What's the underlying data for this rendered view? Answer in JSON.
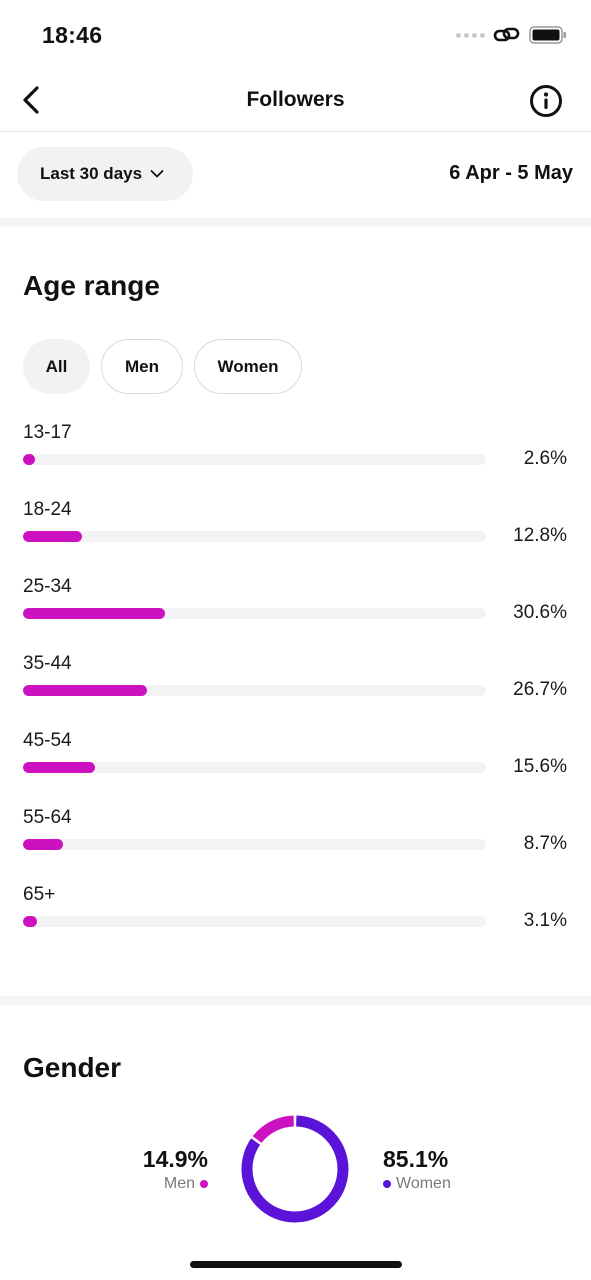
{
  "status": {
    "time": "18:46"
  },
  "nav": {
    "title": "Followers",
    "back_icon": "chevron-left-icon",
    "info_icon": "info-icon"
  },
  "filter": {
    "period": "Last 30 days",
    "date_range": "6 Apr - 5 May"
  },
  "age": {
    "title": "Age range",
    "chips": [
      "All",
      "Men",
      "Women"
    ],
    "selected_chip": "All",
    "bar_color": "#cc11c1",
    "rows": [
      {
        "label": "13-17",
        "value_text": "2.6%",
        "value": 2.6
      },
      {
        "label": "18-24",
        "value_text": "12.8%",
        "value": 12.8
      },
      {
        "label": "25-34",
        "value_text": "30.6%",
        "value": 30.6
      },
      {
        "label": "35-44",
        "value_text": "26.7%",
        "value": 26.7
      },
      {
        "label": "45-54",
        "value_text": "15.6%",
        "value": 15.6
      },
      {
        "label": "55-64",
        "value_text": "8.7%",
        "value": 8.7
      },
      {
        "label": "65+",
        "value_text": "3.1%",
        "value": 3.1
      }
    ]
  },
  "gender": {
    "title": "Gender",
    "men": {
      "label": "Men",
      "value_text": "14.9%",
      "value": 14.9,
      "color": "#cc11c1"
    },
    "women": {
      "label": "Women",
      "value_text": "85.1%",
      "value": 85.1,
      "color": "#5b12d9"
    }
  }
}
